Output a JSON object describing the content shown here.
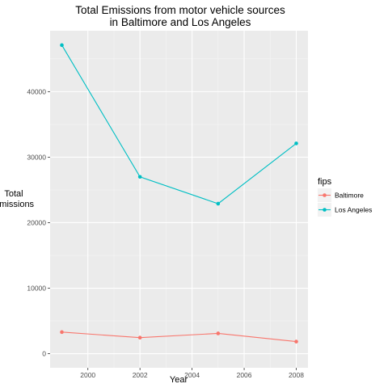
{
  "chart_data": {
    "type": "line",
    "title_lines": [
      "Total Emissions from motor vehicle sources",
      "in Baltimore and Los Angeles"
    ],
    "xlabel": "Year",
    "ylabel_lines": [
      "Total",
      "Emissions"
    ],
    "x": [
      1999,
      2002,
      2005,
      2008
    ],
    "x_ticks": [
      2000,
      2002,
      2004,
      2006,
      2008
    ],
    "x_tick_labels": [
      "2000",
      "2002",
      "2004",
      "2006",
      "2008"
    ],
    "y_ticks": [
      0,
      10000,
      20000,
      30000,
      40000
    ],
    "y_tick_labels": [
      "0",
      "10000",
      "20000",
      "30000",
      "40000"
    ],
    "xlim": [
      1998.55,
      2008.45
    ],
    "ylim": [
      -2150,
      49300
    ],
    "grid": true,
    "legend": {
      "title": "fips",
      "placement": "right"
    },
    "series": [
      {
        "name": "Baltimore",
        "color": "#F8766D",
        "values": [
          3300,
          2450,
          3100,
          1850
        ]
      },
      {
        "name": "Los Angeles",
        "color": "#00BFC4",
        "values": [
          47100,
          27000,
          22900,
          32100
        ]
      }
    ]
  }
}
